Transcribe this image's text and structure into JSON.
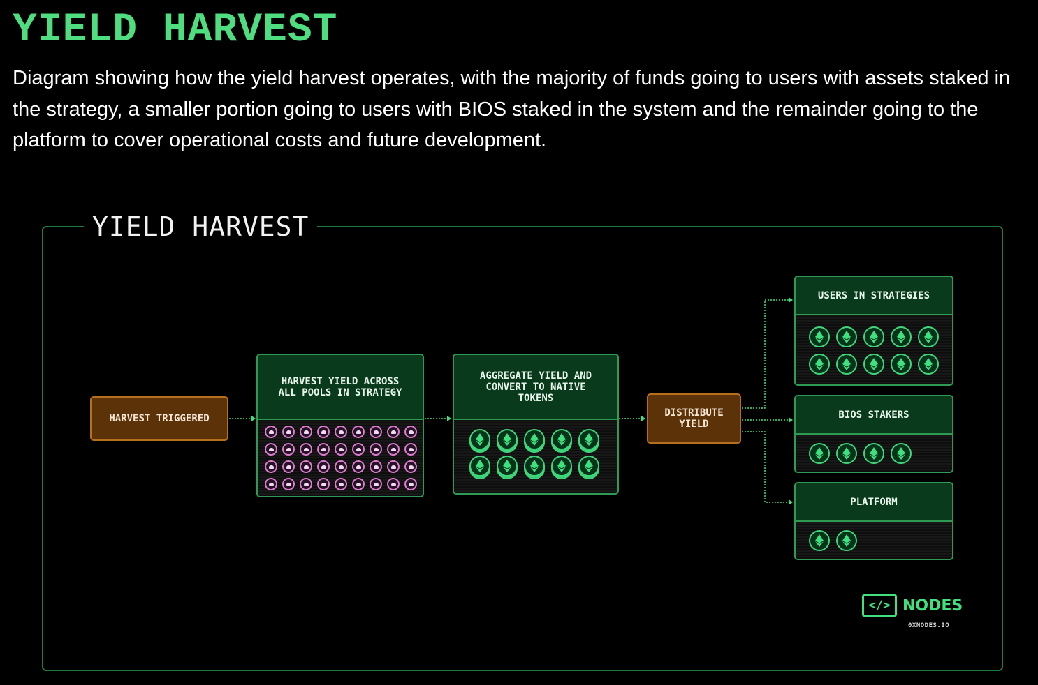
{
  "header": {
    "title": "YIELD HARVEST",
    "description": "Diagram showing how the yield harvest operates, with the majority of funds going to users with assets staked in the strategy, a smaller portion going to users with BIOS staked in the system and the remainder going to the platform to cover operational costs and future development."
  },
  "diagram": {
    "title": "YIELD HARVEST",
    "steps": {
      "harvest_triggered": "HARVEST TRIGGERED",
      "harvest_yield": "HARVEST YIELD ACROSS ALL POOLS IN STRATEGY",
      "aggregate_yield": "AGGREGATE YIELD AND CONVERT TO NATIVE TOKENS",
      "distribute_yield": "DISTRIBUTE YIELD"
    },
    "recipients": {
      "users": "USERS IN STRATEGIES",
      "bios": "BIOS STAKERS",
      "platform": "PLATFORM"
    },
    "icon_counts": {
      "pool_tokens": 36,
      "native_token_stacks": 10,
      "users_tokens": 10,
      "bios_tokens": 4,
      "platform_tokens": 2
    }
  },
  "branding": {
    "logo_mark": "</>",
    "logo_text": "NODES",
    "url": "0XNODES.IO"
  },
  "colors": {
    "accent_green": "#4ede80",
    "box_border_green": "#2e9a52",
    "box_header_green": "#0a3a1c",
    "orange_fill": "#5c3209",
    "orange_border": "#b86f1c",
    "pool_pink": "#e07ad0"
  }
}
